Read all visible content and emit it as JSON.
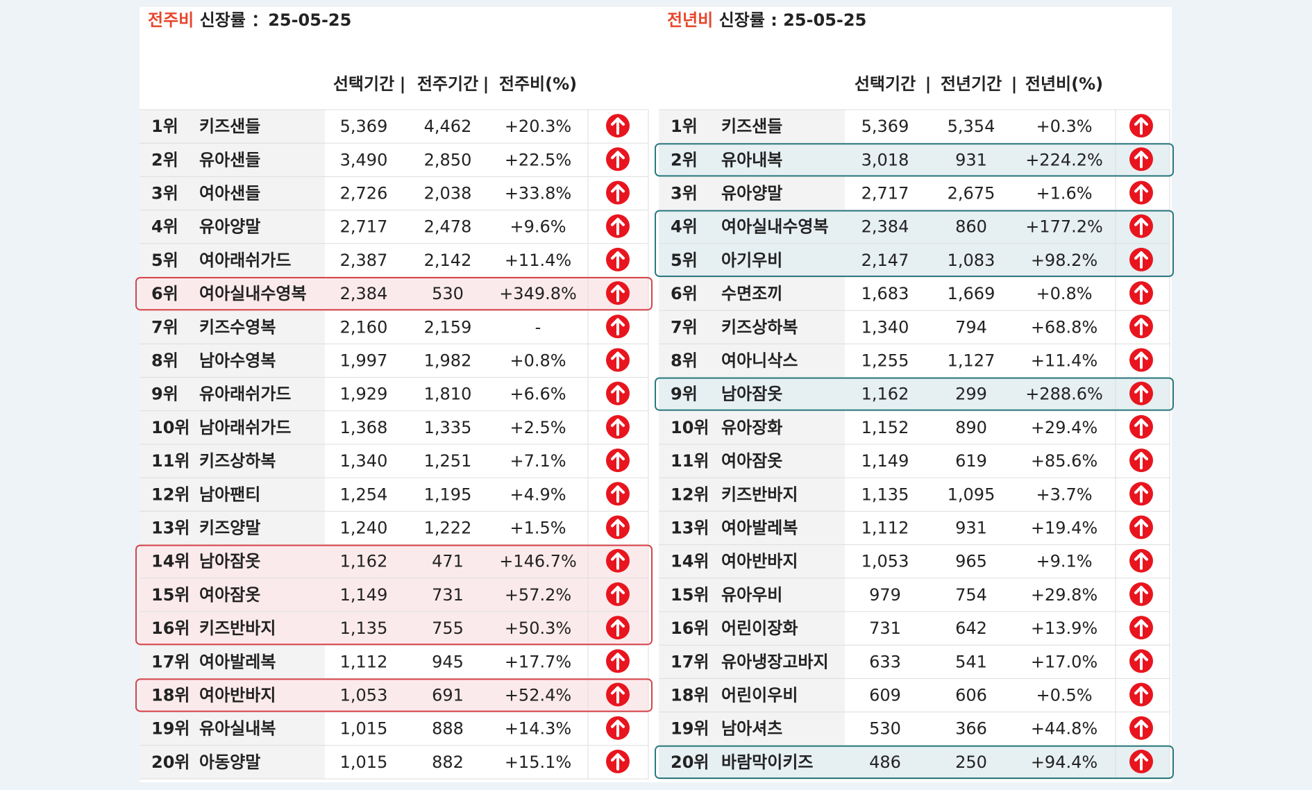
{
  "tables": [
    {
      "title_prefix": "전주비",
      "title_rest": " 신장률 ：25-05-25",
      "headers": [
        "선택기간",
        "|",
        "전주기간",
        "|",
        "전주비(%)"
      ],
      "rows": [
        [
          "1위",
          "키즈샌들",
          "5,369",
          "4,462",
          "+20.3%"
        ],
        [
          "2위",
          "유아샌들",
          "3,490",
          "2,850",
          "+22.5%"
        ],
        [
          "3위",
          "여아샌들",
          "2,726",
          "2,038",
          "+33.8%"
        ],
        [
          "4위",
          "유아양말",
          "2,717",
          "2,478",
          "+9.6%"
        ],
        [
          "5위",
          "여아래쉬가드",
          "2,387",
          "2,142",
          "+11.4%"
        ],
        [
          "6위",
          "여아실내수영복",
          "2,384",
          "530",
          "+349.8%"
        ],
        [
          "7위",
          "키즈수영복",
          "2,160",
          "2,159",
          "-"
        ],
        [
          "8위",
          "남아수영복",
          "1,997",
          "1,982",
          "+0.8%"
        ],
        [
          "9위",
          "유아래쉬가드",
          "1,929",
          "1,810",
          "+6.6%"
        ],
        [
          "10위",
          "남아래쉬가드",
          "1,368",
          "1,335",
          "+2.5%"
        ],
        [
          "11위",
          "키즈상하복",
          "1,340",
          "1,251",
          "+7.1%"
        ],
        [
          "12위",
          "남아팬티",
          "1,254",
          "1,195",
          "+4.9%"
        ],
        [
          "13위",
          "키즈양말",
          "1,240",
          "1,222",
          "+1.5%"
        ],
        [
          "14위",
          "남아잠옷",
          "1,162",
          "471",
          "+146.7%"
        ],
        [
          "15위",
          "여아잠옷",
          "1,149",
          "731",
          "+57.2%"
        ],
        [
          "16위",
          "키즈반바지",
          "1,135",
          "755",
          "+50.3%"
        ],
        [
          "17위",
          "여아발레복",
          "1,112",
          "945",
          "+17.7%"
        ],
        [
          "18위",
          "여아반바지",
          "1,053",
          "691",
          "+52.4%"
        ],
        [
          "19위",
          "유아실내복",
          "1,015",
          "888",
          "+14.3%"
        ],
        [
          "20위",
          "아동양말",
          "1,015",
          "882",
          "+15.1%"
        ]
      ]
    },
    {
      "title_prefix": "전년비",
      "title_rest": " 신장률 : 25-05-25",
      "headers": [
        "선택기간",
        "|",
        "전년기간",
        "|",
        "전년비(%)"
      ],
      "rows": [
        [
          "1위",
          "키즈샌들",
          "5,369",
          "5,354",
          "+0.3%"
        ],
        [
          "2위",
          "유아내복",
          "3,018",
          "931",
          "+224.2%"
        ],
        [
          "3위",
          "유아양말",
          "2,717",
          "2,675",
          "+1.6%"
        ],
        [
          "4위",
          "여아실내수영복",
          "2,384",
          "860",
          "+177.2%"
        ],
        [
          "5위",
          "아기우비",
          "2,147",
          "1,083",
          "+98.2%"
        ],
        [
          "6위",
          "수면조끼",
          "1,683",
          "1,669",
          "+0.8%"
        ],
        [
          "7위",
          "키즈상하복",
          "1,340",
          "794",
          "+68.8%"
        ],
        [
          "8위",
          "여아니삭스",
          "1,255",
          "1,127",
          "+11.4%"
        ],
        [
          "9위",
          "남아잠옷",
          "1,162",
          "299",
          "+288.6%"
        ],
        [
          "10위",
          "유아장화",
          "1,152",
          "890",
          "+29.4%"
        ],
        [
          "11위",
          "여아잠옷",
          "1,149",
          "619",
          "+85.6%"
        ],
        [
          "12위",
          "키즈반바지",
          "1,135",
          "1,095",
          "+3.7%"
        ],
        [
          "13위",
          "여아발레복",
          "1,112",
          "931",
          "+19.4%"
        ],
        [
          "14위",
          "여아반바지",
          "1,053",
          "965",
          "+9.1%"
        ],
        [
          "15위",
          "유아우비",
          "979",
          "754",
          "+29.8%"
        ],
        [
          "16위",
          "어린이장화",
          "731",
          "642",
          "+13.9%"
        ],
        [
          "17위",
          "유아냉장고바지",
          "633",
          "541",
          "+17.0%"
        ],
        [
          "18위",
          "어린이우비",
          "609",
          "606",
          "+0.5%"
        ],
        [
          "19위",
          "남아셔츠",
          "530",
          "366",
          "+44.8%"
        ],
        [
          "20위",
          "바람막이키즈",
          "486",
          "250",
          "+94.4%"
        ]
      ]
    }
  ]
}
